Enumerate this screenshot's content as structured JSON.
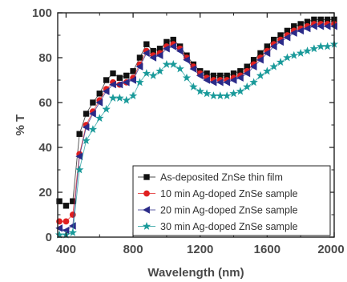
{
  "chart_data": {
    "type": "line",
    "xlabel": "Wavelength (nm)",
    "ylabel": "% T",
    "xlim": [
      350,
      2000
    ],
    "ylim": [
      0,
      100
    ],
    "xticks": [
      400,
      800,
      1200,
      1600,
      2000
    ],
    "yticks": [
      0,
      20,
      40,
      60,
      80,
      100
    ],
    "x_tick_labels": [
      "400",
      "800",
      "1200",
      "1600",
      "2000"
    ],
    "y_tick_labels": [
      "0",
      "20",
      "40",
      "60",
      "80",
      "100"
    ],
    "grid": false,
    "legend_position": "bottom-right",
    "x": [
      360,
      400,
      440,
      480,
      520,
      560,
      600,
      640,
      680,
      720,
      760,
      800,
      840,
      880,
      920,
      960,
      1000,
      1040,
      1080,
      1120,
      1160,
      1200,
      1240,
      1280,
      1320,
      1360,
      1400,
      1440,
      1480,
      1520,
      1560,
      1600,
      1640,
      1680,
      1720,
      1760,
      1800,
      1840,
      1880,
      1920,
      1960,
      2000
    ],
    "series": [
      {
        "name": "As-deposited ZnSe thin film",
        "color": "#111111",
        "marker": "square",
        "values": [
          16,
          14,
          16,
          46,
          55,
          60,
          64,
          70,
          73,
          71,
          72,
          74,
          80,
          86,
          83,
          84,
          87,
          88,
          85,
          81,
          77,
          74,
          73,
          72,
          72,
          72,
          73,
          74,
          76,
          79,
          82,
          85,
          88,
          90,
          92,
          94,
          95,
          96,
          97,
          97,
          97,
          97
        ]
      },
      {
        "name": "10 min Ag-doped ZnSe sample",
        "color": "#e02020",
        "marker": "circle",
        "values": [
          7,
          7,
          10,
          37,
          50,
          56,
          61,
          66,
          69,
          68,
          69,
          71,
          77,
          83,
          81,
          82,
          85,
          86,
          84,
          80,
          76,
          73,
          71,
          70,
          70,
          70,
          71,
          72,
          74,
          77,
          80,
          83,
          86,
          88,
          90,
          92,
          93,
          94,
          95,
          95,
          95,
          95
        ]
      },
      {
        "name": "20 min Ag-doped ZnSe sample",
        "color": "#2a2a88",
        "marker": "triangle-left",
        "values": [
          4,
          3,
          5,
          36,
          49,
          55,
          60,
          65,
          68,
          68,
          69,
          70,
          76,
          82,
          80,
          81,
          84,
          85,
          83,
          79,
          75,
          72,
          70,
          69,
          69,
          69,
          70,
          71,
          73,
          76,
          79,
          82,
          85,
          87,
          89,
          91,
          92,
          93,
          94,
          94,
          94,
          94
        ]
      },
      {
        "name": "30 min Ag-doped ZnSe sample",
        "color": "#1a9a9a",
        "marker": "star",
        "values": [
          1,
          1,
          2,
          30,
          43,
          48,
          53,
          57,
          62,
          62,
          61,
          63,
          69,
          73,
          72,
          74,
          77,
          77,
          75,
          71,
          67,
          65,
          64,
          63,
          63,
          63,
          64,
          65,
          67,
          69,
          72,
          74,
          76,
          78,
          80,
          81,
          82,
          83,
          84,
          85,
          85,
          86
        ]
      }
    ]
  }
}
